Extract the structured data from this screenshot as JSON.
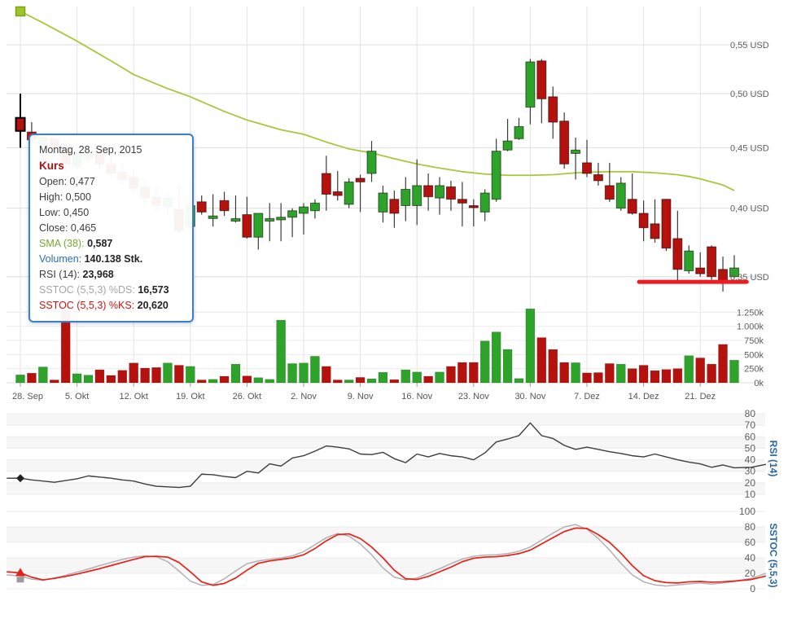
{
  "tooltip": {
    "date": "Montag, 28. Sep, 2015",
    "series": "Kurs",
    "open_label": "Open:",
    "open_value": "0,477",
    "high_label": "High:",
    "high_value": "0,500",
    "low_label": "Low:",
    "low_value": "0,450",
    "close_label": "Close:",
    "close_value": "0,465",
    "sma_label": "SMA (38):",
    "sma_value": "0,587",
    "volume_label": "Volumen:",
    "volume_value": "140.138 Stk.",
    "rsi_label": "RSI (14):",
    "rsi_value": "23,968",
    "ds_label": "SSTOC (5,5,3) %DS:",
    "ds_value": "16,573",
    "ks_label": "SSTOC (5,5,3) %KS:",
    "ks_value": "20,620"
  },
  "colors": {
    "up": "#2ea32a",
    "down": "#b5120e",
    "candle_stroke": "#3a3a3a",
    "sma": "#a8c83c",
    "sma_marker": "#9dc62d",
    "sma_marker_stroke": "#7fa21c",
    "rsi_line": "#3d3d3d",
    "sstoc_k": "#e62119",
    "sstoc_d": "#b3b0b0",
    "grid": "#dedede",
    "grid_vert": "#e3e3e3",
    "grid_light": "#ececec",
    "band": "#f6f6f6",
    "axis_text": "#5f5f5f",
    "pane_title": "#2b66a0",
    "alert": "#ed1b24",
    "marker_dark": "#222222",
    "marker_gray": "#9b9b9b"
  },
  "axes": {
    "price_ticks": [
      {
        "label": "0,55 USD",
        "value": 0.55
      },
      {
        "label": "0,50 USD",
        "value": 0.5
      },
      {
        "label": "0,45 USD",
        "value": 0.45
      },
      {
        "label": "0,40 USD",
        "value": 0.4
      },
      {
        "label": "0,35 USD",
        "value": 0.35
      }
    ],
    "volume_ticks": [
      {
        "label": "1.250k",
        "value": 1250
      },
      {
        "label": "1.000k",
        "value": 1000
      },
      {
        "label": "750k",
        "value": 750
      },
      {
        "label": "500k",
        "value": 500
      },
      {
        "label": "250k",
        "value": 250
      },
      {
        "label": "0k",
        "value": 0
      }
    ],
    "rsi_ticks": [
      80,
      70,
      60,
      50,
      40,
      30,
      20,
      10
    ],
    "sstoc_ticks": [
      100,
      80,
      60,
      40,
      20,
      0
    ],
    "dates": [
      "28. Sep",
      "5. Okt",
      "12. Okt",
      "19. Okt",
      "26. Okt",
      "2. Nov",
      "9. Nov",
      "16. Nov",
      "23. Nov",
      "30. Nov",
      "7. Dez",
      "14. Dez",
      "21. Dez"
    ]
  },
  "panes": {
    "rsi_title": "RSI (14)",
    "sstoc_title": "SSTOC (5,5,3)"
  },
  "chart_data": {
    "type": "candlestick",
    "title": "",
    "x_weekly_labels": [
      "28. Sep",
      "5. Okt",
      "12. Okt",
      "19. Okt",
      "26. Okt",
      "2. Nov",
      "9. Nov",
      "16. Nov",
      "23. Nov",
      "30. Nov",
      "7. Dez",
      "14. Dez",
      "21. Dez"
    ],
    "price_range": [
      0.335,
      0.56
    ],
    "price_scale": "log",
    "candles_ohlc": [
      [
        0.477,
        0.5,
        0.45,
        0.465
      ],
      [
        0.464,
        0.473,
        0.452,
        0.457
      ],
      [
        0.452,
        0.462,
        0.448,
        0.459
      ],
      [
        0.458,
        0.462,
        0.446,
        0.45
      ],
      [
        0.452,
        0.455,
        0.43,
        0.436
      ],
      [
        0.434,
        0.448,
        0.431,
        0.444
      ],
      [
        0.441,
        0.452,
        0.438,
        0.447
      ],
      [
        0.446,
        0.45,
        0.432,
        0.436
      ],
      [
        0.436,
        0.442,
        0.424,
        0.428
      ],
      [
        0.429,
        0.437,
        0.419,
        0.423
      ],
      [
        0.425,
        0.431,
        0.411,
        0.416
      ],
      [
        0.417,
        0.423,
        0.404,
        0.408
      ],
      [
        0.409,
        0.417,
        0.397,
        0.402
      ],
      [
        0.401,
        0.411,
        0.395,
        0.408
      ],
      [
        0.399,
        0.418,
        0.381,
        0.383
      ],
      [
        0.386,
        0.422,
        0.384,
        0.402
      ],
      [
        0.405,
        0.41,
        0.395,
        0.397
      ],
      [
        0.392,
        0.411,
        0.386,
        0.394
      ],
      [
        0.406,
        0.413,
        0.394,
        0.398
      ],
      [
        0.39,
        0.41,
        0.389,
        0.392
      ],
      [
        0.395,
        0.409,
        0.377,
        0.378
      ],
      [
        0.378,
        0.396,
        0.369,
        0.396
      ],
      [
        0.39,
        0.404,
        0.375,
        0.392
      ],
      [
        0.391,
        0.404,
        0.375,
        0.393
      ],
      [
        0.393,
        0.4,
        0.378,
        0.398
      ],
      [
        0.396,
        0.404,
        0.38,
        0.401
      ],
      [
        0.398,
        0.407,
        0.392,
        0.404
      ],
      [
        0.428,
        0.443,
        0.398,
        0.411
      ],
      [
        0.413,
        0.43,
        0.406,
        0.41
      ],
      [
        0.403,
        0.424,
        0.4,
        0.421
      ],
      [
        0.424,
        0.427,
        0.397,
        0.421
      ],
      [
        0.428,
        0.456,
        0.421,
        0.447
      ],
      [
        0.397,
        0.418,
        0.389,
        0.412
      ],
      [
        0.407,
        0.414,
        0.385,
        0.396
      ],
      [
        0.402,
        0.425,
        0.39,
        0.415
      ],
      [
        0.402,
        0.44,
        0.387,
        0.418
      ],
      [
        0.418,
        0.428,
        0.398,
        0.409
      ],
      [
        0.408,
        0.425,
        0.395,
        0.418
      ],
      [
        0.417,
        0.422,
        0.398,
        0.407
      ],
      [
        0.407,
        0.421,
        0.386,
        0.404
      ],
      [
        0.402,
        0.407,
        0.386,
        0.401
      ],
      [
        0.397,
        0.415,
        0.39,
        0.412
      ],
      [
        0.407,
        0.458,
        0.405,
        0.447
      ],
      [
        0.448,
        0.476,
        0.447,
        0.456
      ],
      [
        0.458,
        0.477,
        0.457,
        0.469
      ],
      [
        0.487,
        0.535,
        0.471,
        0.532
      ],
      [
        0.533,
        0.535,
        0.472,
        0.495
      ],
      [
        0.497,
        0.507,
        0.458,
        0.473
      ],
      [
        0.474,
        0.482,
        0.432,
        0.436
      ],
      [
        0.445,
        0.459,
        0.423,
        0.448
      ],
      [
        0.437,
        0.457,
        0.425,
        0.428
      ],
      [
        0.427,
        0.437,
        0.418,
        0.422
      ],
      [
        0.418,
        0.437,
        0.405,
        0.407
      ],
      [
        0.4,
        0.425,
        0.398,
        0.42
      ],
      [
        0.407,
        0.428,
        0.395,
        0.396
      ],
      [
        0.396,
        0.406,
        0.375,
        0.385
      ],
      [
        0.388,
        0.407,
        0.374,
        0.377
      ],
      [
        0.407,
        0.407,
        0.368,
        0.37
      ],
      [
        0.377,
        0.398,
        0.347,
        0.355
      ],
      [
        0.354,
        0.372,
        0.352,
        0.368
      ],
      [
        0.356,
        0.367,
        0.35,
        0.352
      ],
      [
        0.371,
        0.372,
        0.348,
        0.35
      ],
      [
        0.355,
        0.364,
        0.34,
        0.346
      ],
      [
        0.35,
        0.365,
        0.349,
        0.356
      ]
    ],
    "volumes_k": [
      140,
      170,
      280,
      50,
      1290,
      160,
      135,
      230,
      130,
      220,
      350,
      260,
      270,
      350,
      310,
      290,
      50,
      60,
      115,
      330,
      120,
      90,
      60,
      1110,
      340,
      350,
      470,
      290,
      50,
      50,
      95,
      70,
      185,
      55,
      230,
      190,
      115,
      190,
      290,
      360,
      360,
      740,
      900,
      590,
      75,
      1310,
      800,
      590,
      360,
      355,
      175,
      180,
      340,
      330,
      250,
      310,
      215,
      235,
      250,
      480,
      440,
      330,
      680,
      400
    ],
    "volume_green_overrides": [
      0
    ],
    "sma38_points": [
      [
        0,
        0.587
      ],
      [
        2,
        0.574
      ],
      [
        5,
        0.554
      ],
      [
        8,
        0.533
      ],
      [
        10,
        0.519
      ],
      [
        13,
        0.505
      ],
      [
        15,
        0.497
      ],
      [
        18,
        0.483
      ],
      [
        20,
        0.475
      ],
      [
        23,
        0.466
      ],
      [
        25,
        0.462
      ],
      [
        27,
        0.455
      ],
      [
        29,
        0.449
      ],
      [
        31,
        0.4455
      ],
      [
        33,
        0.4405
      ],
      [
        35,
        0.436
      ],
      [
        37,
        0.4325
      ],
      [
        39,
        0.4295
      ],
      [
        41,
        0.4275
      ],
      [
        43,
        0.4265
      ],
      [
        45,
        0.4265
      ],
      [
        47,
        0.427
      ],
      [
        49,
        0.4285
      ],
      [
        50,
        0.429
      ],
      [
        52,
        0.4295
      ],
      [
        54,
        0.4295
      ],
      [
        56,
        0.4285
      ],
      [
        58,
        0.427
      ],
      [
        59,
        0.4255
      ],
      [
        60,
        0.4235
      ],
      [
        61,
        0.421
      ],
      [
        62,
        0.4185
      ],
      [
        63,
        0.414
      ]
    ],
    "rsi14_points": [
      [
        -1.2,
        24
      ],
      [
        0,
        23.97
      ],
      [
        1,
        22.5
      ],
      [
        2,
        21.5
      ],
      [
        3,
        20.5
      ],
      [
        4,
        22
      ],
      [
        5,
        23.5
      ],
      [
        6,
        26
      ],
      [
        7,
        25
      ],
      [
        8,
        24
      ],
      [
        9,
        22.5
      ],
      [
        10,
        21.5
      ],
      [
        11,
        19
      ],
      [
        12,
        17
      ],
      [
        13,
        16.5
      ],
      [
        14,
        16
      ],
      [
        15,
        17
      ],
      [
        16,
        27.5
      ],
      [
        17,
        27
      ],
      [
        18,
        25.5
      ],
      [
        19,
        24.5
      ],
      [
        20,
        30
      ],
      [
        21,
        28.5
      ],
      [
        22,
        36.5
      ],
      [
        23,
        34.5
      ],
      [
        24,
        41.5
      ],
      [
        25,
        43.5
      ],
      [
        26,
        47.5
      ],
      [
        27,
        52
      ],
      [
        28,
        51
      ],
      [
        29,
        49.5
      ],
      [
        30,
        45
      ],
      [
        31,
        44.5
      ],
      [
        32,
        46.5
      ],
      [
        33,
        41
      ],
      [
        34,
        37.5
      ],
      [
        35,
        45
      ],
      [
        36,
        42.5
      ],
      [
        37,
        45.5
      ],
      [
        38,
        43.5
      ],
      [
        39,
        42.5
      ],
      [
        40,
        40
      ],
      [
        41,
        46
      ],
      [
        42,
        55.5
      ],
      [
        43,
        58
      ],
      [
        44,
        61
      ],
      [
        45,
        72
      ],
      [
        46,
        61
      ],
      [
        47,
        58.5
      ],
      [
        48,
        52.5
      ],
      [
        49,
        49
      ],
      [
        50,
        51
      ],
      [
        51,
        49
      ],
      [
        52,
        47
      ],
      [
        53,
        45.5
      ],
      [
        54,
        43.5
      ],
      [
        55,
        42.5
      ],
      [
        56,
        45
      ],
      [
        57,
        42.5
      ],
      [
        58,
        40
      ],
      [
        59,
        38
      ],
      [
        60,
        36.5
      ],
      [
        61,
        33.5
      ],
      [
        62,
        35.5
      ],
      [
        63,
        33
      ],
      [
        64.5,
        33.5
      ],
      [
        65.8,
        36
      ]
    ],
    "sstoc_k_points": [
      [
        -1.2,
        22
      ],
      [
        0,
        20.62
      ],
      [
        1,
        15
      ],
      [
        2,
        11.5
      ],
      [
        3,
        13.5
      ],
      [
        4,
        16
      ],
      [
        5,
        19
      ],
      [
        6,
        22.5
      ],
      [
        7,
        26
      ],
      [
        8,
        30
      ],
      [
        9,
        34
      ],
      [
        10,
        38
      ],
      [
        11,
        41.5
      ],
      [
        12,
        42
      ],
      [
        13,
        41
      ],
      [
        14,
        34
      ],
      [
        15,
        22
      ],
      [
        16,
        9
      ],
      [
        17,
        4.5
      ],
      [
        18,
        7
      ],
      [
        19,
        14
      ],
      [
        20,
        24
      ],
      [
        21,
        33
      ],
      [
        22,
        36
      ],
      [
        23,
        38
      ],
      [
        24,
        40
      ],
      [
        25,
        44
      ],
      [
        26,
        52
      ],
      [
        27,
        62
      ],
      [
        28,
        70
      ],
      [
        29,
        71
      ],
      [
        30,
        65
      ],
      [
        31,
        54
      ],
      [
        32,
        40
      ],
      [
        33,
        24
      ],
      [
        34,
        13
      ],
      [
        35,
        12
      ],
      [
        36,
        16
      ],
      [
        37,
        22
      ],
      [
        38,
        28
      ],
      [
        39,
        35
      ],
      [
        40,
        39.5
      ],
      [
        41,
        41
      ],
      [
        42,
        41.5
      ],
      [
        43,
        43
      ],
      [
        44,
        45.5
      ],
      [
        45,
        50
      ],
      [
        46,
        58
      ],
      [
        47,
        66
      ],
      [
        48,
        74
      ],
      [
        49,
        78.5
      ],
      [
        50,
        78
      ],
      [
        51,
        70
      ],
      [
        52,
        60
      ],
      [
        53,
        46
      ],
      [
        54,
        30
      ],
      [
        55,
        17
      ],
      [
        56,
        10.5
      ],
      [
        57,
        8
      ],
      [
        58,
        7.5
      ],
      [
        59,
        9
      ],
      [
        60,
        9.5
      ],
      [
        61,
        8.5
      ],
      [
        62,
        9
      ],
      [
        63,
        10
      ],
      [
        64.5,
        12
      ],
      [
        65.8,
        16.5
      ]
    ],
    "sstoc_d_points": [
      [
        -1.2,
        18
      ],
      [
        0,
        16.57
      ],
      [
        1,
        12.5
      ],
      [
        2,
        11
      ],
      [
        3,
        14
      ],
      [
        4,
        17.5
      ],
      [
        5,
        21.5
      ],
      [
        6,
        25.5
      ],
      [
        7,
        30
      ],
      [
        8,
        34
      ],
      [
        9,
        38
      ],
      [
        10,
        41
      ],
      [
        11,
        42.5
      ],
      [
        12,
        41.5
      ],
      [
        13,
        35
      ],
      [
        14,
        23
      ],
      [
        15,
        10
      ],
      [
        16,
        4.5
      ],
      [
        17,
        5.5
      ],
      [
        18,
        13
      ],
      [
        19,
        23
      ],
      [
        20,
        32.5
      ],
      [
        21,
        36
      ],
      [
        22,
        38
      ],
      [
        23,
        40
      ],
      [
        24,
        42.5
      ],
      [
        25,
        48
      ],
      [
        26,
        57
      ],
      [
        27,
        66
      ],
      [
        28,
        71.5
      ],
      [
        29,
        68
      ],
      [
        30,
        58
      ],
      [
        31,
        44
      ],
      [
        32,
        27
      ],
      [
        33,
        15
      ],
      [
        34,
        11.5
      ],
      [
        35,
        14
      ],
      [
        36,
        20
      ],
      [
        37,
        26
      ],
      [
        38,
        32.5
      ],
      [
        39,
        38.5
      ],
      [
        40,
        42
      ],
      [
        41,
        43.5
      ],
      [
        42,
        44
      ],
      [
        43,
        45.5
      ],
      [
        44,
        48.5
      ],
      [
        45,
        54
      ],
      [
        46,
        63
      ],
      [
        47,
        72
      ],
      [
        48,
        80
      ],
      [
        49,
        83
      ],
      [
        50,
        77
      ],
      [
        51,
        65
      ],
      [
        52,
        50
      ],
      [
        53,
        33
      ],
      [
        54,
        18
      ],
      [
        55,
        9
      ],
      [
        56,
        5
      ],
      [
        57,
        3.5
      ],
      [
        58,
        5
      ],
      [
        59,
        6.5
      ],
      [
        60,
        7.5
      ],
      [
        61,
        6
      ],
      [
        62,
        7.5
      ],
      [
        63,
        9.5
      ],
      [
        64.5,
        13.5
      ],
      [
        65.8,
        20
      ]
    ],
    "alert_line": {
      "from_i": 54.6,
      "to_i": 64.1,
      "value": 0.3465
    },
    "hover_markers": {
      "index": 0,
      "sma": 0.587,
      "rsi": 23.968,
      "sstoc_k": 20.62,
      "sstoc_d": 16.57
    }
  }
}
